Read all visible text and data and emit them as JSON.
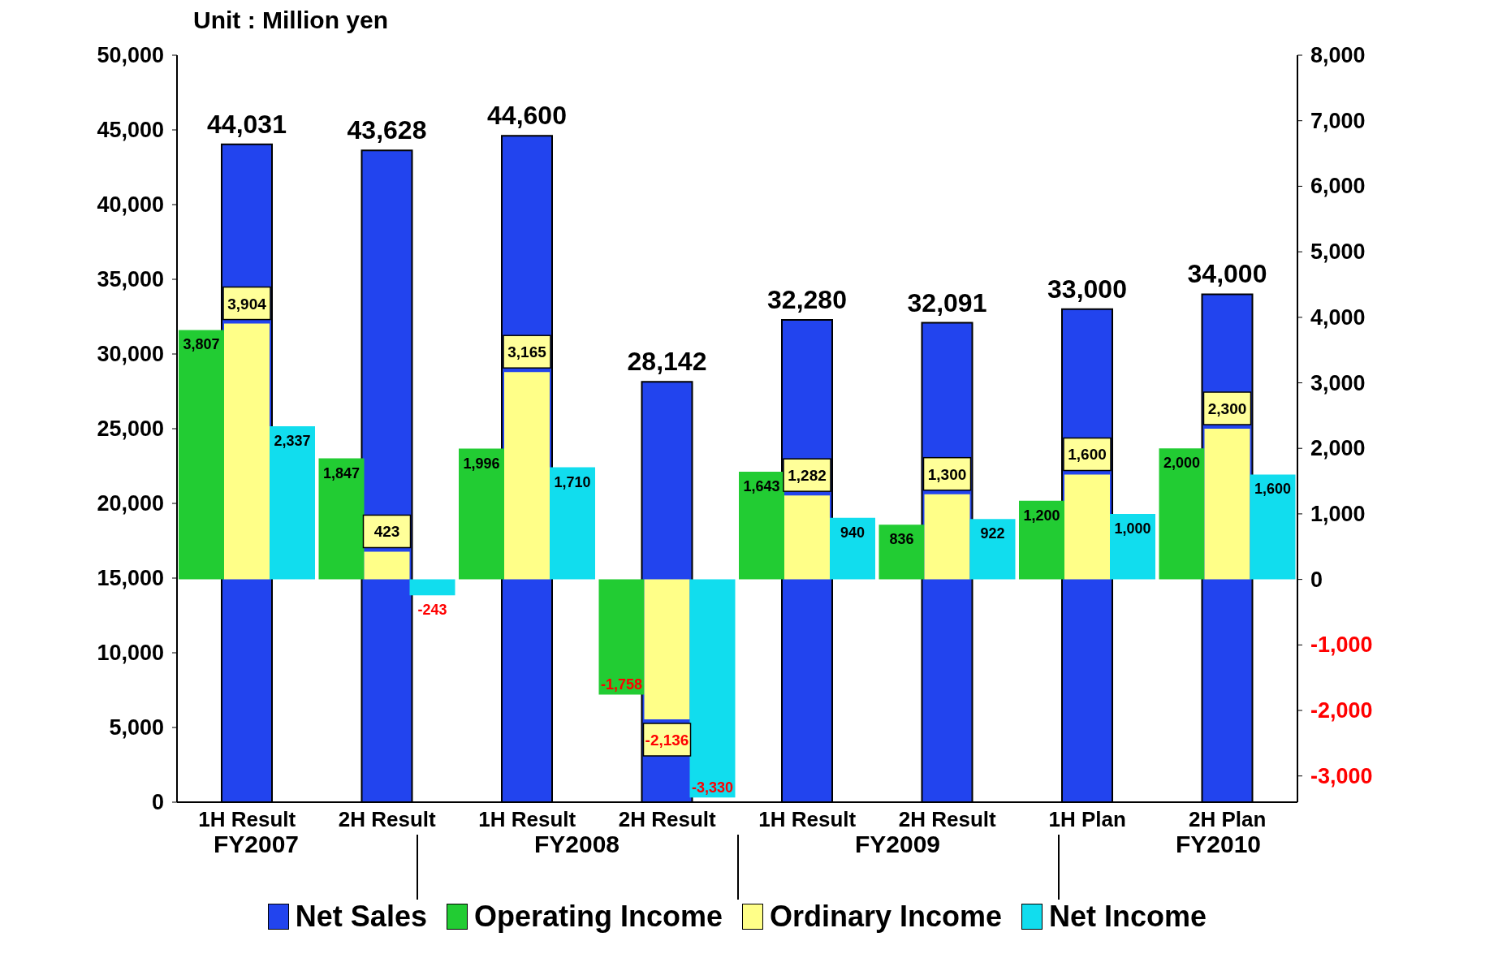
{
  "chart_data": {
    "type": "bar",
    "annotations": [
      "Unit : Million yen",
      "FY2007",
      "FY2008",
      "FY2009",
      "FY2010"
    ],
    "categories": [
      "1H Result",
      "2H Result",
      "1H Result",
      "2H Result",
      "1H Result",
      "2H Result",
      "1H Plan",
      "2H Plan"
    ],
    "series": [
      {
        "name": "Net Sales",
        "color": "#2244ee",
        "values": [
          44031,
          43628,
          44600,
          28142,
          32280,
          32091,
          33000,
          34000
        ],
        "value_labels": [
          "44,031",
          "43,628",
          "44,600",
          "28,142",
          "32,280",
          "32,091",
          "33,000",
          "34,000"
        ]
      },
      {
        "name": "Operating Income",
        "color": "#22cc33",
        "axis": "y2",
        "values": [
          3807,
          1847,
          1996,
          -1758,
          1643,
          836,
          1200,
          2000
        ],
        "value_labels": [
          "3,807",
          "1,847",
          "1,996",
          "-1,758",
          "1,643",
          "836",
          "1,200",
          "2,000"
        ]
      },
      {
        "name": "Ordinary Income",
        "color": "#ffff88",
        "axis": "y2",
        "values": [
          3904,
          423,
          3165,
          -2136,
          1282,
          1300,
          1600,
          2300
        ],
        "value_labels": [
          "3,904",
          "423",
          "3,165",
          "-2,136",
          "1,282",
          "1,300",
          "1,600",
          "2,300"
        ]
      },
      {
        "name": "Net Income",
        "color": "#11ddee",
        "axis": "y2",
        "values": [
          2337,
          -243,
          1710,
          -3330,
          940,
          922,
          1000,
          1600
        ],
        "value_labels": [
          "2,337",
          "-243",
          "1,710",
          "-3,330",
          "940",
          "922",
          "1,000",
          "1,600"
        ]
      }
    ],
    "ylim": [
      0,
      50000
    ],
    "yticks": [
      {
        "value": 0,
        "label": "0"
      },
      {
        "value": 5000,
        "label": "5,000"
      },
      {
        "value": 10000,
        "label": "10,000"
      },
      {
        "value": 15000,
        "label": "15,000"
      },
      {
        "value": 20000,
        "label": "20,000"
      },
      {
        "value": 25000,
        "label": "25,000"
      },
      {
        "value": 30000,
        "label": "30,000"
      },
      {
        "value": 35000,
        "label": "35,000"
      },
      {
        "value": 40000,
        "label": "40,000"
      },
      {
        "value": 45000,
        "label": "45,000"
      },
      {
        "value": 50000,
        "label": "50,000"
      }
    ],
    "y2lim": [
      -3400,
      8000
    ],
    "y2ticks": [
      {
        "value": -3000,
        "label": "-3,000"
      },
      {
        "value": -2000,
        "label": "-2,000"
      },
      {
        "value": -1000,
        "label": "-1,000"
      },
      {
        "value": 0,
        "label": "0"
      },
      {
        "value": 1000,
        "label": "1,000"
      },
      {
        "value": 2000,
        "label": "2,000"
      },
      {
        "value": 3000,
        "label": "3,000"
      },
      {
        "value": 4000,
        "label": "4,000"
      },
      {
        "value": 5000,
        "label": "5,000"
      },
      {
        "value": 6000,
        "label": "6,000"
      },
      {
        "value": 7000,
        "label": "7,000"
      },
      {
        "value": 8000,
        "label": "8,000"
      }
    ],
    "data_labels": true,
    "legend": "bottom"
  }
}
